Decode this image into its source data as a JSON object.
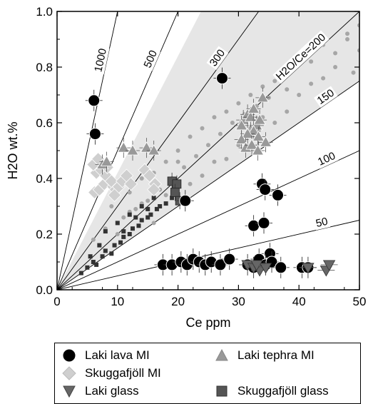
{
  "chart_data": {
    "type": "scatter",
    "xlabel": "Ce ppm",
    "ylabel": "H2O wt.%",
    "xlim": [
      0,
      50
    ],
    "ylim": [
      0,
      1.0
    ],
    "x_ticks": [
      "0",
      "10",
      "20",
      "30",
      "40",
      "50"
    ],
    "y_ticks": [
      "0.0",
      "0.2",
      "0.4",
      "0.6",
      "0.8",
      "1.0"
    ],
    "ratio_lines": [
      {
        "label": "1000",
        "ratio": 1000
      },
      {
        "label": "500",
        "ratio": 500
      },
      {
        "label": "300",
        "ratio": 300
      },
      {
        "label": "H2O/Ce=200",
        "ratio": 200
      },
      {
        "label": "150",
        "ratio": 150
      },
      {
        "label": "100",
        "ratio": 100
      },
      {
        "label": "50",
        "ratio": 50
      }
    ],
    "shaded_field": {
      "ratio_range": [
        150,
        420
      ],
      "color": "#e6e6e6"
    },
    "colors": {
      "lava_mi": "#000000",
      "tephra_mi": "#999999",
      "skuggafjoll_mi": "#cfcfcf",
      "laki_glass": "#666666",
      "skuggafjoll_glass": "#555555",
      "background_points": "#a6a6a6",
      "background_squares": "#333333"
    },
    "series": [
      {
        "name": "Laki lava MI",
        "marker": "circle",
        "x": [
          6.1,
          6.3,
          27.3,
          21.2,
          33.9,
          34.4,
          36.5,
          32.5,
          34.2,
          35.2,
          33.4,
          17.5,
          19,
          20.5,
          21.5,
          22.5,
          23.5,
          24.5,
          25.5,
          27,
          28.5,
          31.5,
          32.5,
          34.5,
          35.5,
          37,
          40.5,
          41.5
        ],
        "y": [
          0.68,
          0.56,
          0.76,
          0.32,
          0.38,
          0.36,
          0.34,
          0.23,
          0.24,
          0.13,
          0.11,
          0.09,
          0.09,
          0.1,
          0.09,
          0.11,
          0.1,
          0.09,
          0.1,
          0.09,
          0.11,
          0.09,
          0.08,
          0.09,
          0.1,
          0.08,
          0.08,
          0.08
        ]
      },
      {
        "name": "Laki tephra MI",
        "marker": "triangle-up",
        "x": [
          7.5,
          8.2,
          11,
          12.5,
          14.8,
          16,
          30.8,
          31.5,
          32,
          32.5,
          33,
          33.5,
          34,
          32.5,
          31.5,
          30.5,
          33.3,
          31.2,
          34.5,
          32.2,
          33.2,
          30.5
        ],
        "y": [
          0.45,
          0.46,
          0.51,
          0.5,
          0.51,
          0.5,
          0.61,
          0.63,
          0.62,
          0.65,
          0.59,
          0.61,
          0.69,
          0.57,
          0.56,
          0.54,
          0.55,
          0.51,
          0.53,
          0.52,
          0.5,
          0.59
        ]
      },
      {
        "name": "Skuggafjöll MI",
        "marker": "diamond",
        "x": [
          6.2,
          7.0,
          7.8,
          8.5,
          9.3,
          6.5,
          7.3,
          8.1,
          9.0,
          9.7,
          10.2,
          10.8,
          11.5,
          12.2,
          6.0,
          6.8,
          8.3,
          9.5,
          14.5,
          15.3,
          16.2,
          16.0
        ],
        "y": [
          0.35,
          0.36,
          0.38,
          0.4,
          0.37,
          0.42,
          0.43,
          0.41,
          0.39,
          0.36,
          0.37,
          0.39,
          0.41,
          0.38,
          0.45,
          0.47,
          0.44,
          0.34,
          0.43,
          0.41,
          0.38,
          0.36
        ]
      },
      {
        "name": "Laki glass",
        "marker": "triangle-down",
        "x": [
          31.5,
          32.5,
          33.5,
          34.5,
          41.5,
          44.5,
          45.0,
          33.0
        ],
        "y": [
          0.09,
          0.08,
          0.07,
          0.08,
          0.08,
          0.07,
          0.09,
          0.09
        ]
      },
      {
        "name": "Skuggafjöll glass",
        "marker": "square",
        "x": [
          19.0,
          19.8,
          19.5,
          20.3
        ],
        "y": [
          0.39,
          0.38,
          0.35,
          0.32
        ]
      },
      {
        "marker": "small-square",
        "x": [
          4.0,
          5.0,
          6.0,
          6.5,
          7.5,
          8.0,
          9.0,
          9.5,
          10.5,
          11.0,
          12.0,
          12.5,
          13.5,
          14.0,
          15.0,
          15.5,
          16.5,
          17.0,
          18.0,
          19.0,
          8.0,
          10.0,
          12.0,
          14.0,
          16.0,
          5.5,
          7.0,
          11.0,
          13.0,
          15.0
        ],
        "y": [
          0.06,
          0.08,
          0.1,
          0.09,
          0.12,
          0.14,
          0.13,
          0.16,
          0.17,
          0.19,
          0.2,
          0.22,
          0.23,
          0.25,
          0.26,
          0.27,
          0.29,
          0.3,
          0.31,
          0.33,
          0.21,
          0.24,
          0.27,
          0.3,
          0.33,
          0.12,
          0.16,
          0.21,
          0.26,
          0.29
        ]
      },
      {
        "marker": "small-circle",
        "x": [
          6,
          8,
          9,
          11,
          12,
          13,
          14,
          15,
          16,
          17,
          18,
          19,
          20,
          21,
          22,
          23,
          24,
          25,
          26,
          27,
          28,
          29,
          30,
          31,
          32,
          33,
          34,
          35,
          36,
          37,
          38,
          39,
          40,
          42,
          44,
          46,
          48,
          49,
          50,
          10,
          14,
          18,
          22,
          26,
          30,
          34,
          38,
          42,
          46,
          50,
          12,
          20,
          28,
          36,
          44,
          16,
          24,
          32,
          40,
          48
        ],
        "y": [
          0.18,
          0.22,
          0.3,
          0.26,
          0.35,
          0.29,
          0.4,
          0.32,
          0.42,
          0.36,
          0.46,
          0.4,
          0.5,
          0.44,
          0.55,
          0.48,
          0.58,
          0.52,
          0.62,
          0.56,
          0.64,
          0.6,
          0.67,
          0.63,
          0.7,
          0.66,
          0.73,
          0.69,
          0.75,
          0.78,
          0.72,
          0.8,
          0.84,
          0.82,
          0.88,
          0.85,
          0.92,
          0.78,
          0.86,
          0.2,
          0.31,
          0.34,
          0.38,
          0.46,
          0.52,
          0.62,
          0.64,
          0.74,
          0.8,
          0.95,
          0.28,
          0.46,
          0.47,
          0.6,
          0.76,
          0.24,
          0.41,
          0.58,
          0.7,
          0.9
        ]
      }
    ]
  },
  "legend": {
    "items": [
      {
        "label": "Laki lava MI",
        "marker": "circle"
      },
      {
        "label": "Laki tephra MI",
        "marker": "triangle-up"
      },
      {
        "label": "Skuggafjöll MI",
        "marker": "diamond"
      },
      {
        "label": "Laki glass",
        "marker": "triangle-down"
      },
      {
        "label": "Skuggafjöll glass",
        "marker": "square"
      }
    ]
  }
}
